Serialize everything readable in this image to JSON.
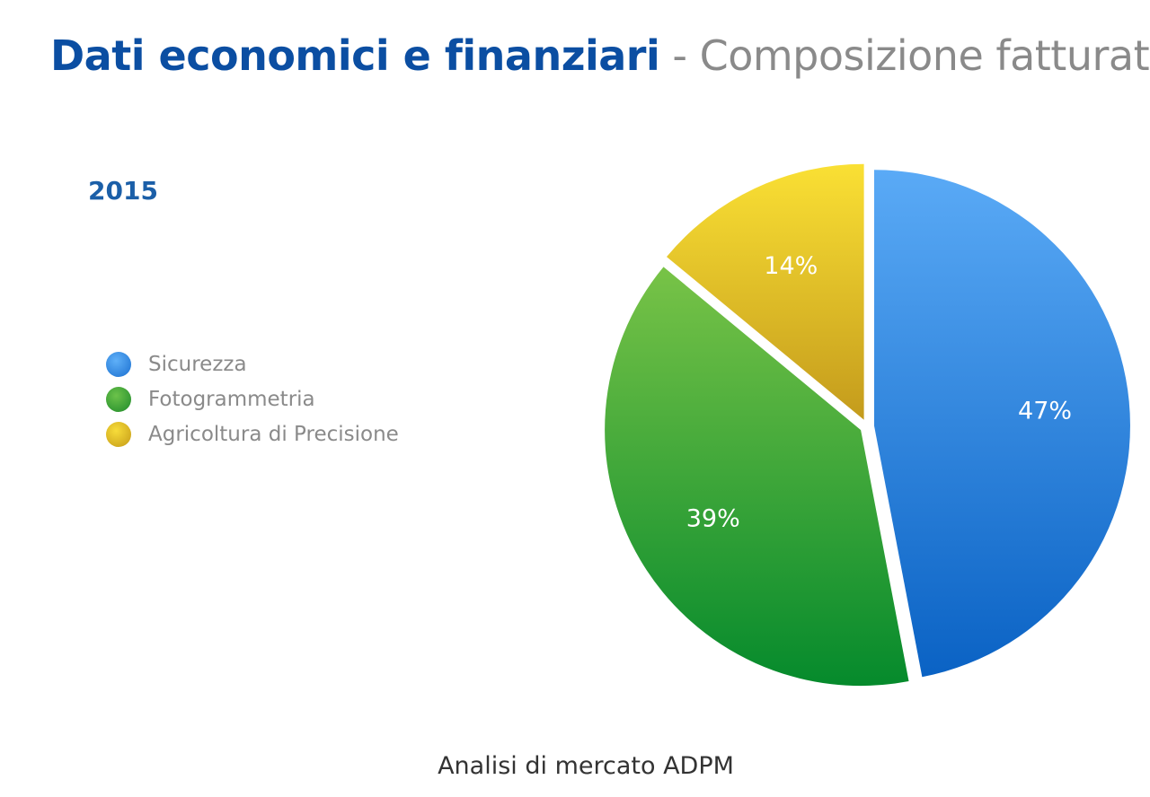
{
  "header": {
    "title_main": "Dati economici e finanziari",
    "title_separator": " - ",
    "title_sub": "Composizione fatturato"
  },
  "chart_data": {
    "type": "pie",
    "title": "2015",
    "categories": [
      "Sicurezza",
      "Fotogrammetria",
      "Agricoltura di Precisione"
    ],
    "values": [
      47,
      39,
      14
    ],
    "labels": [
      "47%",
      "39%",
      "14%"
    ],
    "colors": [
      "#2f8be6",
      "#3fa83a",
      "#e3bf20"
    ],
    "legend_position": "left"
  },
  "footer": {
    "caption": "Analisi di mercato ADPM"
  }
}
